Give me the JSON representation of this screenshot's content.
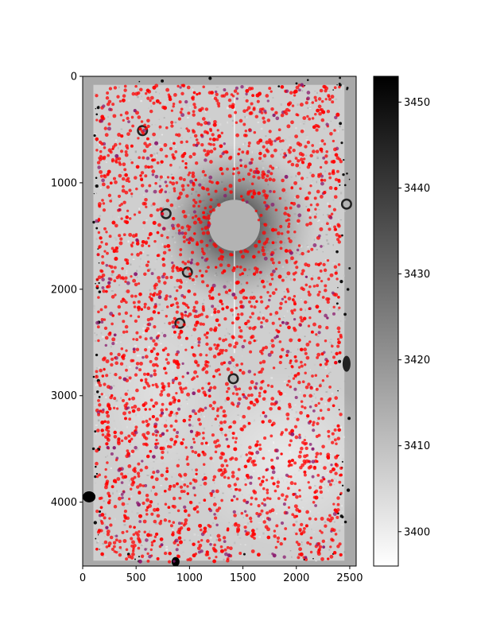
{
  "chart_data": [
    {
      "type": "heatmap",
      "title": "",
      "xlabel": "",
      "ylabel": "",
      "xlim": [
        0,
        2560
      ],
      "ylim": [
        4600,
        0
      ],
      "y_inverted": true,
      "x_ticks": [
        0,
        500,
        1000,
        1500,
        2000,
        2500
      ],
      "x_tick_labels": [
        "0",
        "500",
        "1000",
        "1500",
        "2000",
        "2500"
      ],
      "y_ticks": [
        0,
        1000,
        2000,
        3000,
        4000
      ],
      "y_tick_labels": [
        "0",
        "1000",
        "2000",
        "3000",
        "4000"
      ],
      "colormap": "gray_r",
      "colorbar": {
        "range": [
          3396,
          3453
        ],
        "ticks": [
          3400,
          3410,
          3420,
          3430,
          3440,
          3450
        ],
        "tick_labels": [
          "3400",
          "3410",
          "3420",
          "3430",
          "3440",
          "3450"
        ]
      },
      "image_features": {
        "field_x_range": [
          100,
          2450
        ],
        "field_y_range": [
          80,
          4550
        ],
        "saturated_star": {
          "x": 1420,
          "y": 1400,
          "radius": 240
        },
        "masked_blobs": [
          {
            "x": 780,
            "y": 1290
          },
          {
            "x": 980,
            "y": 1840
          },
          {
            "x": 910,
            "y": 2320
          },
          {
            "x": 560,
            "y": 510
          },
          {
            "x": 2470,
            "y": 1200
          },
          {
            "x": 1410,
            "y": 2840
          }
        ]
      },
      "overlay": {
        "marker": "circle",
        "primary_color": "#ff0000",
        "secondary_color": "#8a1a6e",
        "x_range": [
          130,
          2420
        ],
        "y_range": [
          80,
          4560
        ],
        "approx_count": 3000,
        "excluded_region": {
          "x": 1420,
          "y": 1400,
          "radius": 230
        }
      }
    }
  ]
}
